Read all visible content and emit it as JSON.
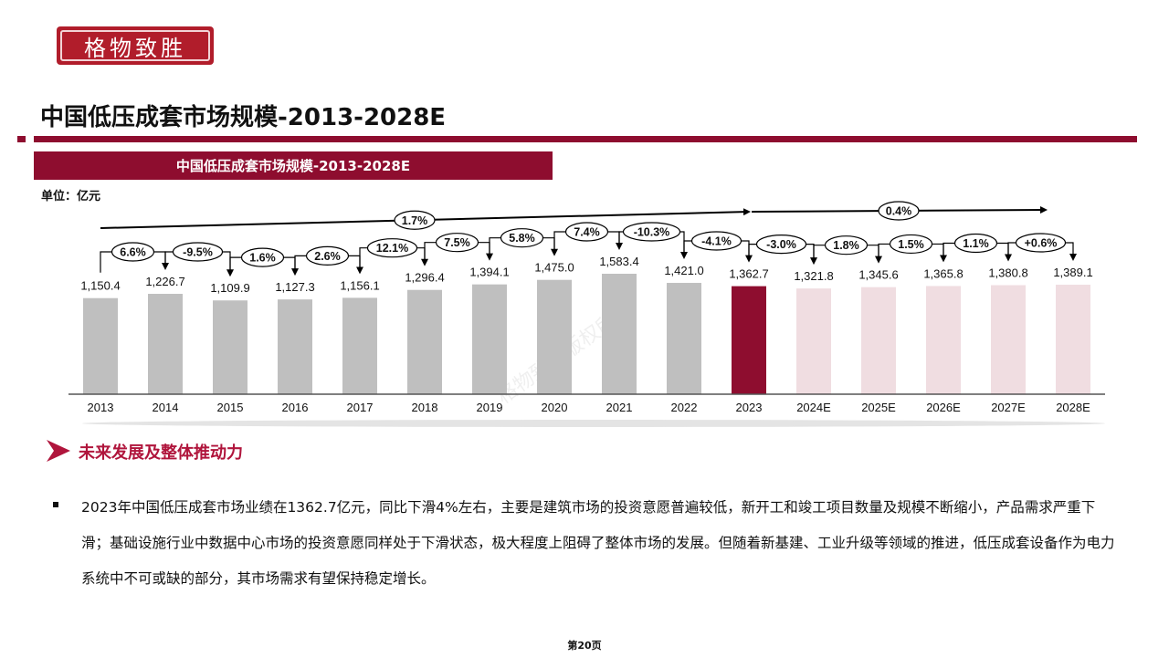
{
  "logo": {
    "text": "格物致胜"
  },
  "page_title": "中国低压成套市场规模-2013-2028E",
  "chart_banner": "中国低压成套市场规模-2013-2028E",
  "unit_label": "单位：亿元",
  "watermark": "格物致胜版权所有",
  "colors": {
    "brand": "#8e0d2f",
    "actual": "#bfbfbf",
    "current": "#8e0d2f",
    "forecast": "#f0dde1"
  },
  "chart_data": {
    "type": "bar",
    "categories": [
      "2013",
      "2014",
      "2015",
      "2016",
      "2017",
      "2018",
      "2019",
      "2020",
      "2021",
      "2022",
      "2023",
      "2024E",
      "2025E",
      "2026E",
      "2027E",
      "2028E"
    ],
    "values": [
      1150.4,
      1226.7,
      1109.9,
      1127.3,
      1156.1,
      1296.4,
      1394.1,
      1475.0,
      1583.4,
      1421.0,
      1362.7,
      1321.8,
      1345.6,
      1365.8,
      1380.8,
      1389.1
    ],
    "value_labels": [
      "1,150.4",
      "1,226.7",
      "1,109.9",
      "1,127.3",
      "1,156.1",
      "1,296.4",
      "1,394.1",
      "1,475.0",
      "1,583.4",
      "1,421.0",
      "1,362.7",
      "1,321.8",
      "1,345.6",
      "1,365.8",
      "1,380.8",
      "1,389.1"
    ],
    "yoy_growth": [
      "6.6%",
      "-9.5%",
      "1.6%",
      "2.6%",
      "12.1%",
      "7.5%",
      "5.8%",
      "7.4%",
      "-10.3%",
      "-4.1%",
      "-3.0%",
      "1.8%",
      "1.5%",
      "1.1%",
      "+0.6%"
    ],
    "cagr": [
      {
        "label": "1.7%",
        "from": "2013",
        "to": "2023"
      },
      {
        "label": "0.4%",
        "from": "2023",
        "to": "2028E"
      }
    ],
    "series_kind": [
      "actual",
      "actual",
      "actual",
      "actual",
      "actual",
      "actual",
      "actual",
      "actual",
      "actual",
      "actual",
      "current",
      "forecast",
      "forecast",
      "forecast",
      "forecast",
      "forecast"
    ],
    "title": "中国低压成套市场规模-2013-2028E",
    "ylabel": "",
    "grid": false
  },
  "section": {
    "title": "未来发展及整体推动力",
    "body": "2023年中国低压成套市场业绩在1362.7亿元，同比下滑4%左右，主要是建筑市场的投资意愿普遍较低，新开工和竣工项目数量及规模不断缩小，产品需求严重下滑；基础设施行业中数据中心市场的投资意愿同样处于下滑状态，极大程度上阻碍了整体市场的发展。但随着新基建、工业升级等领域的推进，低压成套设备作为电力系统中不可或缺的部分，其市场需求有望保持稳定增长。"
  },
  "page_number": "第20页"
}
